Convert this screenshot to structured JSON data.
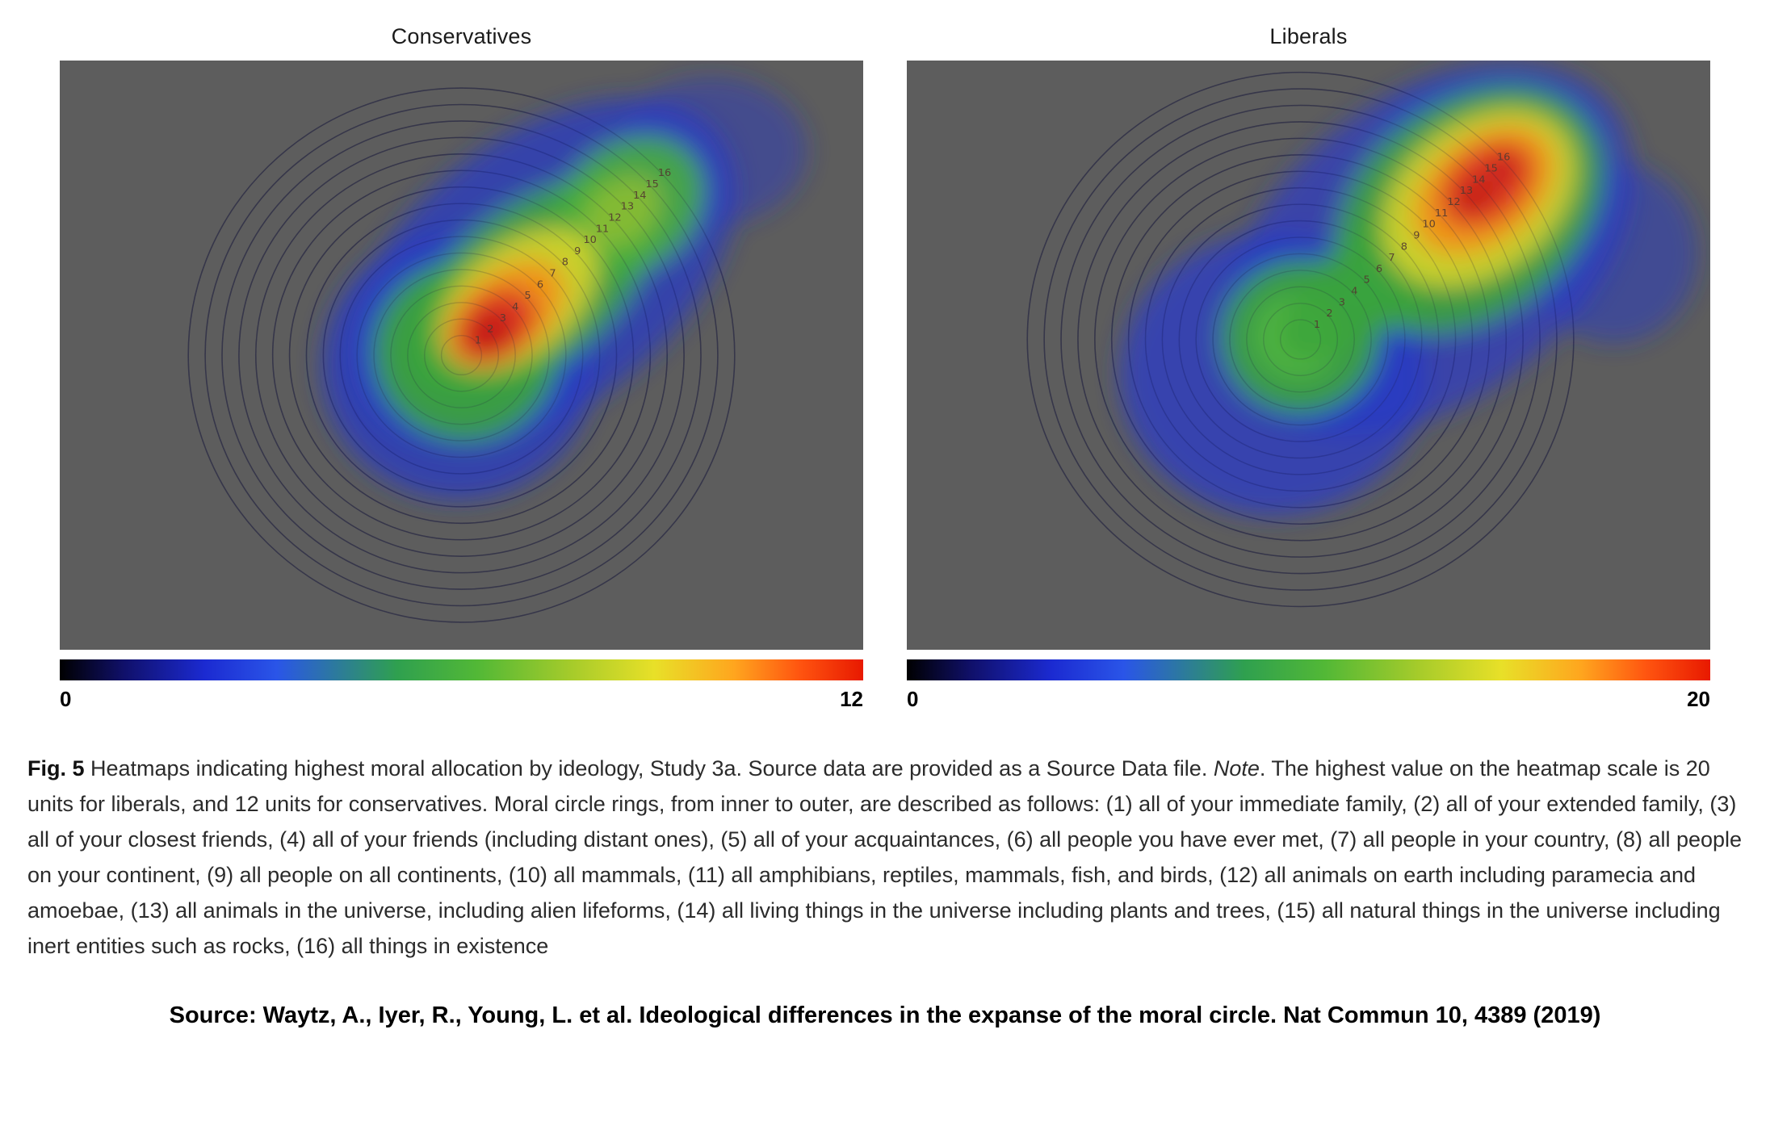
{
  "chart_data": [
    {
      "type": "heatmap",
      "title": "Conservatives",
      "plot_background": "#5d5d5d",
      "ring_labels": [
        "1",
        "2",
        "3",
        "4",
        "5",
        "6",
        "7",
        "8",
        "9",
        "10",
        "11",
        "12",
        "13",
        "14",
        "15",
        "16"
      ],
      "colorbar": {
        "min": 0,
        "max": 12,
        "min_label": "0",
        "max_label": "12",
        "gradient_stops": [
          "#000000 0%",
          "#10106a 8%",
          "#1b2ad1 18%",
          "#2a55e8 27%",
          "#2fa04f 42%",
          "#52b836 52%",
          "#a8cc2a 64%",
          "#e8e028 74%",
          "#ffa51e 84%",
          "#ff5510 92%",
          "#e81900 100%"
        ]
      },
      "distribution": {
        "peak_rings": "2-5",
        "peak_value": 12,
        "description": "Red/orange hotspot over inner rings (immediate family through acquaintances), warm band stretching diagonally through rings 6-12, green lobe over rings 13-16, blue halo at edges"
      }
    },
    {
      "type": "heatmap",
      "title": "Liberals",
      "plot_background": "#5d5d5d",
      "ring_labels": [
        "1",
        "2",
        "3",
        "4",
        "5",
        "6",
        "7",
        "8",
        "9",
        "10",
        "11",
        "12",
        "13",
        "14",
        "15",
        "16"
      ],
      "colorbar": {
        "min": 0,
        "max": 20,
        "min_label": "0",
        "max_label": "20",
        "gradient_stops": [
          "#000000 0%",
          "#10106a 8%",
          "#1b2ad1 18%",
          "#2a55e8 27%",
          "#2fa04f 42%",
          "#52b836 52%",
          "#a8cc2a 64%",
          "#e8e028 74%",
          "#ffa51e 84%",
          "#ff5510 92%",
          "#e81900 100%"
        ]
      },
      "distribution": {
        "peak_rings": "12-16",
        "peak_value": 20,
        "description": "Red/orange hotspot over outer rings (all animals in the universe through all things in existence), green lobe over inner rings 1-5, blue halo at edges"
      }
    }
  ],
  "moral_circle_rings": [
    "all of your immediate family",
    "all of your extended family",
    "all of your closest friends",
    "all of your friends (including distant ones)",
    "all of your acquaintances",
    "all people you have ever met",
    "all people in your country",
    "all people on your continent",
    "all people on all continents",
    "all mammals",
    "all amphibians, reptiles, mammals, fish, and birds",
    "all animals on earth including paramecia and amoebae",
    "all animals in the universe, including alien lifeforms",
    "all living things in the universe including plants and trees",
    "all natural things in the universe including inert entities such as rocks",
    "all things in existence"
  ],
  "caption": {
    "fig_label": "Fig. 5",
    "text_1": " Heatmaps indicating highest moral allocation by ideology, Study 3a. Source data are provided as a Source Data file. ",
    "note_label": "Note",
    "text_2": ". The highest value on the heatmap scale is 20 units for liberals, and 12 units for conservatives. Moral circle rings, from inner to outer, are described as follows: (1) all of your immediate family, (2) all of your extended family, (3) all of your closest friends, (4) all of your friends (including distant ones), (5) all of your acquaintances, (6) all people you have ever met, (7) all people in your country, (8) all people on your continent, (9) all people on all continents, (10) all mammals, (11) all amphibians, reptiles, mammals, fish, and birds, (12) all animals on earth including paramecia and amoebae, (13) all animals in the universe, including alien lifeforms, (14) all living things in the universe including plants and trees, (15) all natural things in the universe including inert entities such as rocks, (16) all things in existence"
  },
  "source_line": "Source: Waytz, A., Iyer, R., Young, L. et al. Ideological differences in the expanse of the moral circle. Nat Commun 10, 4389 (2019)"
}
